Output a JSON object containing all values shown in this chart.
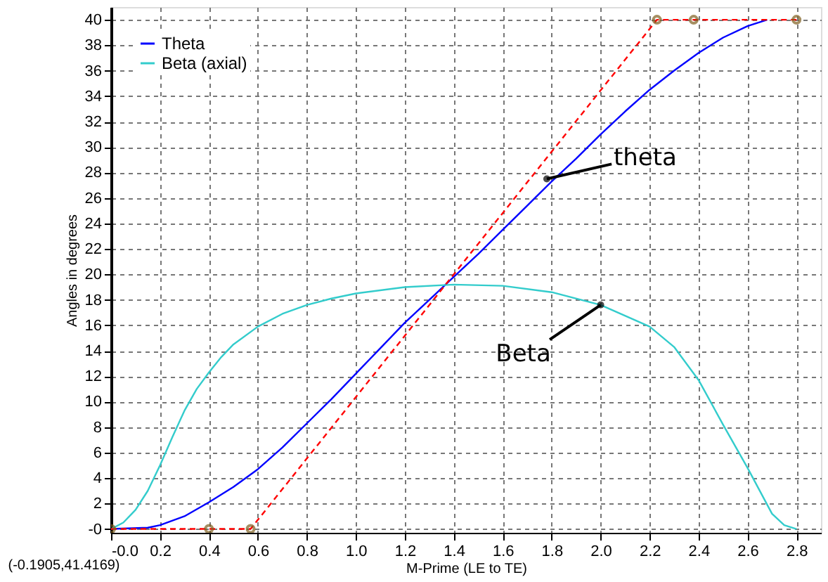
{
  "chart_data": {
    "type": "line",
    "xlabel": "M-Prime (LE to TE)",
    "ylabel": "Angles in degrees",
    "xlim": [
      0.0,
      2.9
    ],
    "ylim": [
      -0.3,
      41
    ],
    "xticks": [
      {
        "value": 0,
        "label": "-0.0"
      },
      0.2,
      0.4,
      0.6,
      0.8,
      {
        "value": 1,
        "label": "1.0"
      },
      1.2,
      1.4,
      1.6,
      1.8,
      {
        "value": 2,
        "label": "2.0"
      },
      2.2,
      2.4,
      2.6,
      2.8
    ],
    "yticks": [
      {
        "value": 0,
        "label": "-0"
      },
      2,
      4,
      6,
      8,
      10,
      12,
      14,
      16,
      18,
      20,
      22,
      24,
      26,
      28,
      30,
      32,
      34,
      36,
      38,
      40
    ],
    "grid": true,
    "legend": "top left",
    "line_style": "solid",
    "marker": "none",
    "series": [
      {
        "name": "Theta",
        "color": "#0000ff",
        "x": [
          0,
          0.15,
          0.2,
          0.3,
          0.4,
          0.5,
          0.6,
          0.7,
          0.8,
          0.9,
          1.0,
          1.1,
          1.2,
          1.3,
          1.4,
          1.5,
          1.6,
          1.7,
          1.8,
          1.9,
          2.0,
          2.1,
          2.2,
          2.3,
          2.4,
          2.5,
          2.6,
          2.68
        ],
        "values": [
          0,
          0.1,
          0.3,
          1,
          2.1,
          3.3,
          4.7,
          6.4,
          8.3,
          10.2,
          12.2,
          14.2,
          16.2,
          18,
          19.8,
          21.6,
          23.5,
          25.4,
          27.3,
          29.1,
          31,
          32.8,
          34.5,
          36,
          37.4,
          38.6,
          39.5,
          40
        ]
      },
      {
        "name": "Beta (axial)",
        "color": "#33cccc",
        "x": [
          0,
          0.05,
          0.1,
          0.15,
          0.2,
          0.25,
          0.3,
          0.35,
          0.4,
          0.45,
          0.5,
          0.6,
          0.7,
          0.8,
          0.9,
          1.0,
          1.2,
          1.4,
          1.6,
          1.8,
          2.0,
          2.2,
          2.3,
          2.4,
          2.5,
          2.6,
          2.7,
          2.75,
          2.8
        ],
        "values": [
          0,
          0.5,
          1.5,
          3,
          5,
          7.2,
          9.3,
          11,
          12.3,
          13.5,
          14.5,
          15.9,
          16.9,
          17.6,
          18.1,
          18.5,
          19,
          19.2,
          19.1,
          18.6,
          17.6,
          15.9,
          14.3,
          11.7,
          8.2,
          4.8,
          1.2,
          0.3,
          0
        ]
      },
      {
        "color": "#ff0000",
        "line_style": "dashed",
        "marker": "circle",
        "x": [
          0,
          0.4,
          0.57,
          2.23,
          2.38,
          2.8
        ],
        "values": [
          0,
          0,
          0,
          40,
          40,
          40
        ]
      }
    ],
    "annotations": [
      {
        "text": "theta",
        "x": 1.78,
        "y": 27.5
      },
      {
        "text": "Beta",
        "x": 2.0,
        "y": 17.6
      },
      "(-0.1905,41.4169)"
    ]
  }
}
